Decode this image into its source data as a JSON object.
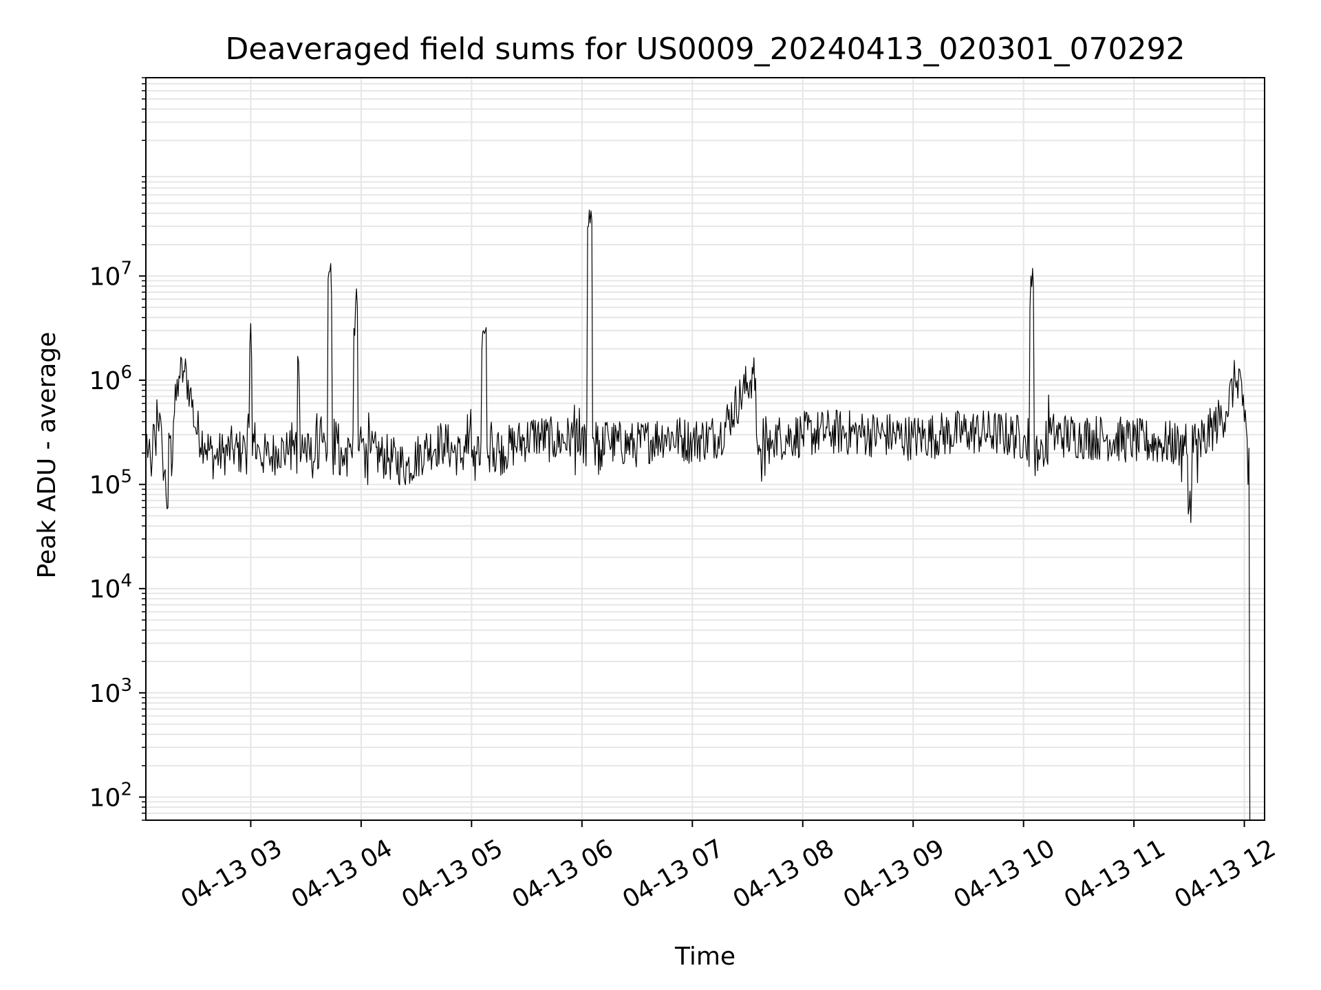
{
  "chart_data": {
    "type": "line",
    "title": "Deaveraged field sums for US0009_20240413_020301_070292",
    "xlabel": "Time",
    "ylabel": "Peak ADU - average",
    "yscale": "log",
    "ylim": [
      60,
      800000000
    ],
    "xlim": [
      "2024-04-13 02:03",
      "2024-04-13 12:11"
    ],
    "x_ticks": [
      {
        "value": "2024-04-13 03:00",
        "label": "04-13 03"
      },
      {
        "value": "2024-04-13 04:00",
        "label": "04-13 04"
      },
      {
        "value": "2024-04-13 05:00",
        "label": "04-13 05"
      },
      {
        "value": "2024-04-13 06:00",
        "label": "04-13 06"
      },
      {
        "value": "2024-04-13 07:00",
        "label": "04-13 07"
      },
      {
        "value": "2024-04-13 08:00",
        "label": "04-13 08"
      },
      {
        "value": "2024-04-13 09:00",
        "label": "04-13 09"
      },
      {
        "value": "2024-04-13 10:00",
        "label": "04-13 10"
      },
      {
        "value": "2024-04-13 11:00",
        "label": "04-13 11"
      },
      {
        "value": "2024-04-13 12:00",
        "label": "04-13 12"
      }
    ],
    "y_ticks": [
      {
        "value": 100,
        "base": "10",
        "exp": "2"
      },
      {
        "value": 1000,
        "base": "10",
        "exp": "3"
      },
      {
        "value": 10000,
        "base": "10",
        "exp": "4"
      },
      {
        "value": 100000,
        "base": "10",
        "exp": "5"
      },
      {
        "value": 1000000,
        "base": "10",
        "exp": "6"
      },
      {
        "value": 10000000,
        "base": "10",
        "exp": "7"
      }
    ],
    "grid": true,
    "line_color": "#000000",
    "grid_color": "#e6e6e6",
    "series": [
      {
        "x": [
          "2024-04-13 02:03",
          "2024-04-13 02:06",
          "2024-04-13 02:09",
          "2024-04-13 02:12",
          "2024-04-13 02:15",
          "2024-04-13 02:18",
          "2024-04-13 02:21",
          "2024-04-13 02:24",
          "2024-04-13 02:27",
          "2024-04-13 02:30",
          "2024-04-13 02:35",
          "2024-04-13 02:40",
          "2024-04-13 02:45",
          "2024-04-13 02:50",
          "2024-04-13 02:55",
          "2024-04-13 03:00",
          "2024-04-13 03:05",
          "2024-04-13 03:10",
          "2024-04-13 03:15",
          "2024-04-13 03:20",
          "2024-04-13 03:26",
          "2024-04-13 03:30",
          "2024-04-13 03:35",
          "2024-04-13 03:43",
          "2024-04-13 03:50",
          "2024-04-13 03:57",
          "2024-04-13 04:05",
          "2024-04-13 04:15",
          "2024-04-13 04:25",
          "2024-04-13 04:35",
          "2024-04-13 04:45",
          "2024-04-13 04:55",
          "2024-04-13 05:07",
          "2024-04-13 05:15",
          "2024-04-13 05:25",
          "2024-04-13 05:35",
          "2024-04-13 05:45",
          "2024-04-13 05:55",
          "2024-04-13 06:04",
          "2024-04-13 06:15",
          "2024-04-13 06:30",
          "2024-04-13 06:45",
          "2024-04-13 07:00",
          "2024-04-13 07:15",
          "2024-04-13 07:33",
          "2024-04-13 07:45",
          "2024-04-13 08:00",
          "2024-04-13 08:15",
          "2024-04-13 08:30",
          "2024-04-13 08:45",
          "2024-04-13 09:00",
          "2024-04-13 09:15",
          "2024-04-13 09:30",
          "2024-04-13 09:45",
          "2024-04-13 10:00",
          "2024-04-13 10:04",
          "2024-04-13 10:15",
          "2024-04-13 10:30",
          "2024-04-13 10:45",
          "2024-04-13 11:00",
          "2024-04-13 11:15",
          "2024-04-13 11:25",
          "2024-04-13 11:30",
          "2024-04-13 11:40",
          "2024-04-13 11:50",
          "2024-04-13 11:55",
          "2024-04-13 11:58",
          "2024-04-13 12:00",
          "2024-04-13 12:02",
          "2024-04-13 12:03"
        ],
        "y": [
          300000,
          120000,
          650000,
          200000,
          60000,
          400000,
          1100000,
          1200000,
          800000,
          350000,
          250000,
          180000,
          200000,
          220000,
          200000,
          3500000,
          200000,
          180000,
          220000,
          200000,
          1500000,
          200000,
          180000,
          11000000,
          150000,
          5500000,
          200000,
          180000,
          150000,
          220000,
          250000,
          180000,
          2800000,
          200000,
          250000,
          300000,
          260000,
          280000,
          43000000,
          250000,
          240000,
          300000,
          260000,
          300000,
          1150000,
          280000,
          300000,
          320000,
          310000,
          300000,
          280000,
          300000,
          320000,
          310000,
          280000,
          10000000,
          300000,
          290000,
          280000,
          260000,
          250000,
          240000,
          60000,
          300000,
          500000,
          1000000,
          1100000,
          400000,
          100000,
          60
        ]
      }
    ]
  }
}
